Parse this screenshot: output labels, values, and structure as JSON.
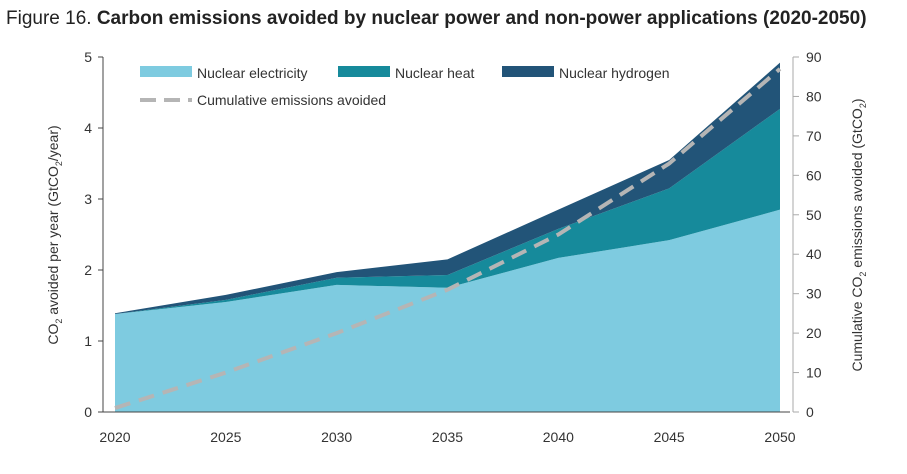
{
  "title_prefix": "Figure 16.",
  "title_main": "Carbon emissions avoided by nuclear power and non-power applications (2020-2050)",
  "chart_data": {
    "type": "area",
    "title": "Carbon emissions avoided by nuclear power and non-power applications (2020-2050)",
    "x": [
      2020,
      2025,
      2030,
      2035,
      2040,
      2045,
      2050
    ],
    "x_tick_labels": [
      "2020",
      "2025",
      "2030",
      "2035",
      "2040",
      "2045",
      "2050"
    ],
    "ylabel_left": {
      "pre": "CO",
      "sub": "2",
      "post": " avoided per year (GtCO",
      "sub2": "2",
      "end": "/year)"
    },
    "ylabel_right": {
      "pre": "Cumulative CO",
      "sub": "2",
      "post": " emissions avoided (GtCO",
      "sub2": "2",
      "end": ")"
    },
    "ylim_left": [
      0,
      5
    ],
    "ylim_right": [
      0,
      90
    ],
    "y_left_ticks": [
      "0",
      "1",
      "2",
      "3",
      "4",
      "5"
    ],
    "y_right_ticks": [
      "0",
      "10",
      "20",
      "30",
      "40",
      "50",
      "60",
      "70",
      "80",
      "90"
    ],
    "stacked": true,
    "series": [
      {
        "name": "Nuclear electricity",
        "color": "#7ecbe0",
        "values": [
          1.38,
          1.55,
          1.79,
          1.75,
          2.17,
          2.42,
          2.85
        ]
      },
      {
        "name": "Nuclear heat",
        "color": "#168a9b",
        "values": [
          0.0,
          0.03,
          0.1,
          0.18,
          0.41,
          0.73,
          1.42
        ]
      },
      {
        "name": "Nuclear hydrogen",
        "color": "#225478",
        "values": [
          0.01,
          0.07,
          0.08,
          0.22,
          0.27,
          0.4,
          0.65
        ]
      }
    ],
    "line_series": {
      "name": "Cumulative emissions avoided",
      "color": "#b5b5b5",
      "axis": "right",
      "style": "dashed",
      "values": [
        1,
        10,
        20,
        31,
        45,
        63,
        87
      ]
    },
    "legend_position": "top-left",
    "grid": false
  }
}
